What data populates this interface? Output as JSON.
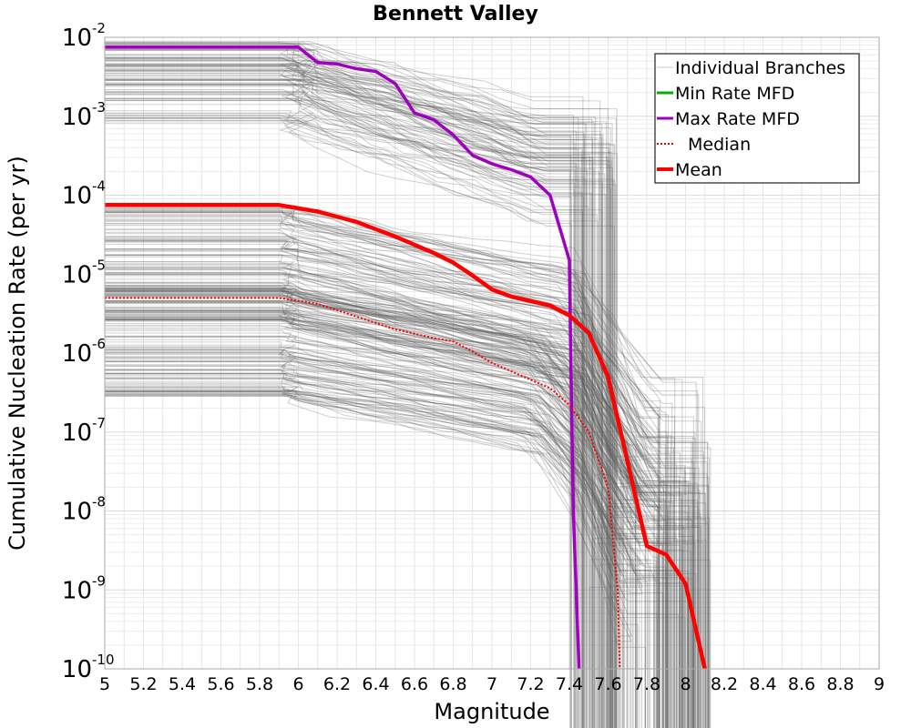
{
  "chart_data": {
    "type": "line",
    "title": "Bennett Valley",
    "xlabel": "Magnitude",
    "ylabel": "Cumulative Nucleation Rate (per yr)",
    "xlim": [
      5,
      9
    ],
    "ylim": [
      1e-10,
      0.01
    ],
    "yscale": "log",
    "grid": true,
    "legend_position": "top-right",
    "x_ticks": [
      "5",
      "5.2",
      "5.4",
      "5.6",
      "5.8",
      "6",
      "6.2",
      "6.4",
      "6.6",
      "6.8",
      "7",
      "7.2",
      "7.4",
      "7.6",
      "7.8",
      "8",
      "8.2",
      "8.4",
      "8.6",
      "8.8",
      "9"
    ],
    "y_ticks": [
      {
        "base": "10",
        "exp": "-2",
        "value": 0.01
      },
      {
        "base": "10",
        "exp": "-3",
        "value": 0.001
      },
      {
        "base": "10",
        "exp": "-4",
        "value": 0.0001
      },
      {
        "base": "10",
        "exp": "-5",
        "value": 1e-05
      },
      {
        "base": "10",
        "exp": "-6",
        "value": 1e-06
      },
      {
        "base": "10",
        "exp": "-7",
        "value": 1e-07
      },
      {
        "base": "10",
        "exp": "-8",
        "value": 1e-08
      },
      {
        "base": "10",
        "exp": "-9",
        "value": 1e-09
      },
      {
        "base": "10",
        "exp": "-10",
        "value": 1e-10
      }
    ],
    "legend": [
      {
        "label": "Individual Branches",
        "color": "#c8c8c8",
        "style": "thin"
      },
      {
        "label": "Min Rate MFD",
        "color": "#00b000",
        "style": "solid"
      },
      {
        "label": "Max Rate MFD",
        "color": "#a000c0",
        "style": "solid"
      },
      {
        "label": "Median",
        "color": "#ff0000",
        "style": "dotted"
      },
      {
        "label": "Mean",
        "color": "#ff0000",
        "style": "thick"
      }
    ],
    "series": [
      {
        "name": "Max Rate MFD",
        "color": "#a000c0",
        "x": [
          5.0,
          6.0,
          6.1,
          6.2,
          6.3,
          6.4,
          6.5,
          6.6,
          6.7,
          6.8,
          6.9,
          7.0,
          7.1,
          7.2,
          7.3,
          7.4,
          7.405,
          7.42,
          7.45
        ],
        "y": [
          0.0075,
          0.0075,
          0.0048,
          0.0046,
          0.004,
          0.0037,
          0.0026,
          0.0011,
          0.0009,
          0.00058,
          0.00032,
          0.00025,
          0.00021,
          0.00017,
          0.0001,
          1.5e-05,
          2e-06,
          1e-08,
          1e-10
        ]
      },
      {
        "name": "Mean",
        "color": "#ff0000",
        "x": [
          5.0,
          5.9,
          6.1,
          6.3,
          6.5,
          6.7,
          6.8,
          6.9,
          7.0,
          7.1,
          7.3,
          7.4,
          7.5,
          7.6,
          7.7,
          7.8,
          7.9,
          8.0,
          8.1
        ],
        "y": [
          7.5e-05,
          7.5e-05,
          6.2e-05,
          4.6e-05,
          3e-05,
          1.85e-05,
          1.4e-05,
          9.6e-06,
          6.4e-06,
          5.2e-06,
          4e-06,
          3e-06,
          1.8e-06,
          5e-07,
          4.2e-08,
          3.6e-09,
          2.8e-09,
          1.2e-09,
          1e-10
        ]
      },
      {
        "name": "Median",
        "color": "#ff0000",
        "x": [
          5.0,
          5.9,
          6.1,
          6.3,
          6.5,
          6.7,
          6.8,
          6.9,
          7.0,
          7.2,
          7.3,
          7.4,
          7.5,
          7.6,
          7.65,
          7.66
        ],
        "y": [
          5e-06,
          5e-06,
          4.2e-06,
          2.9e-06,
          2e-06,
          1.55e-06,
          1.4e-06,
          1.05e-06,
          7.5e-07,
          4.6e-07,
          3.6e-07,
          2.2e-07,
          1e-07,
          2e-08,
          1e-09,
          1e-10
        ]
      }
    ]
  }
}
